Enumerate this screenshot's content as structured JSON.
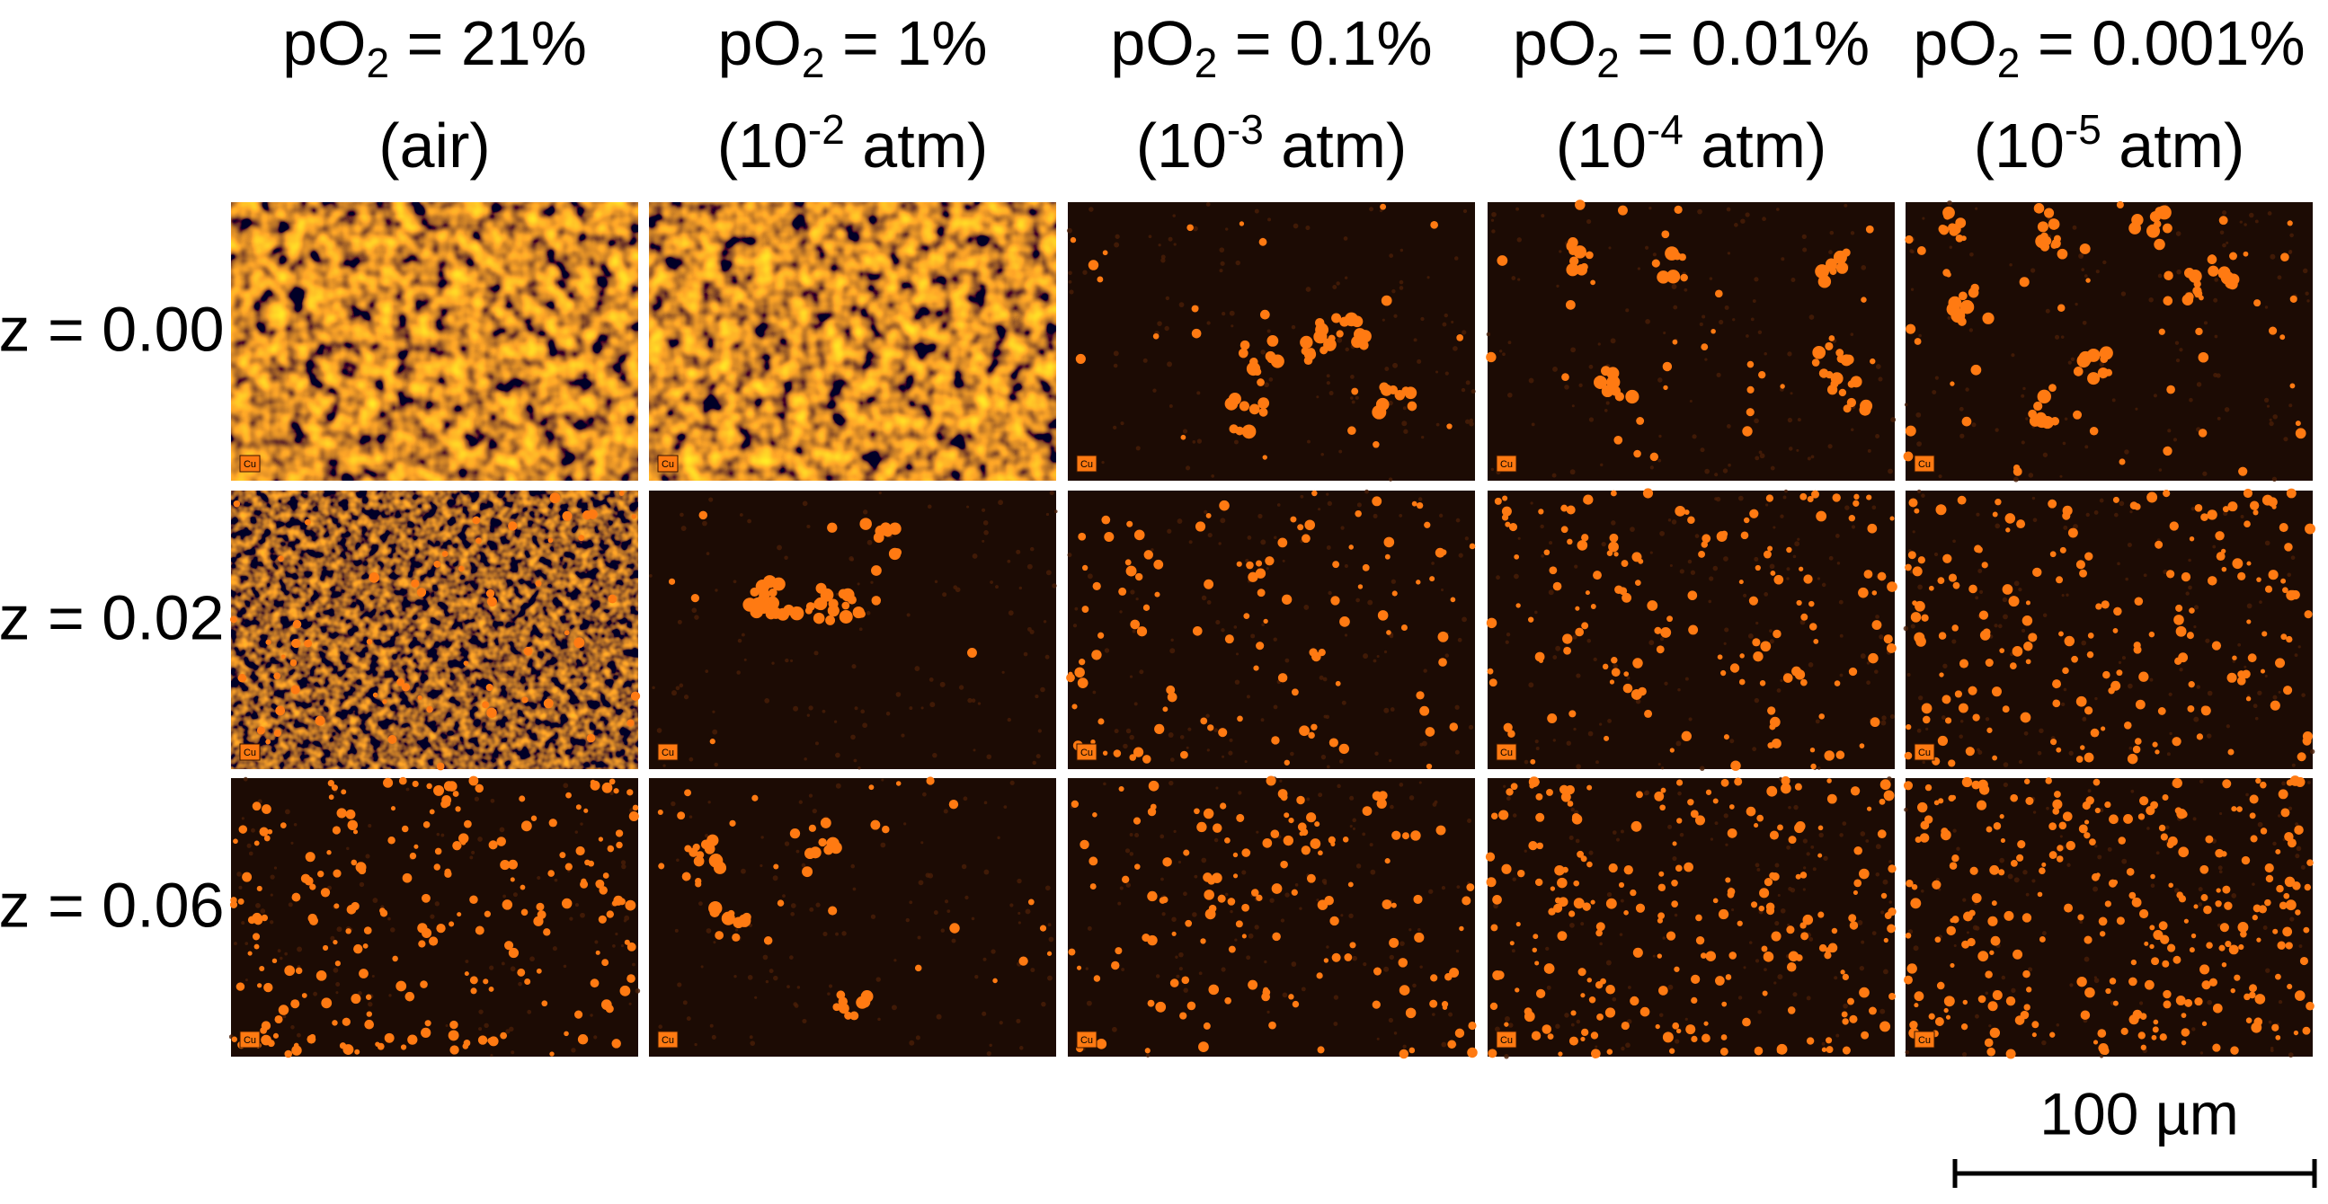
{
  "columns": [
    {
      "title": {
        "main": "pO",
        "sub": "2",
        "rest": " = 21%"
      },
      "subtitle": {
        "main": "(air)"
      }
    },
    {
      "title": {
        "main": "pO",
        "sub": "2",
        "rest": " = 1%"
      },
      "subtitle": {
        "main": "(10",
        "sup": "-2",
        "rest": " atm)"
      }
    },
    {
      "title": {
        "main": "pO",
        "sub": "2",
        "rest": " = 0.1%"
      },
      "subtitle": {
        "main": "(10",
        "sup": "-3",
        "rest": " atm)"
      }
    },
    {
      "title": {
        "main": "pO",
        "sub": "2",
        "rest": " = 0.01%"
      },
      "subtitle": {
        "main": "(10",
        "sup": "-4",
        "rest": " atm)"
      }
    },
    {
      "title": {
        "main": "pO",
        "sub": "2",
        "rest": " = 0.001%"
      },
      "subtitle": {
        "main": "(10",
        "sup": "-5",
        "rest": " atm)"
      }
    }
  ],
  "rows": [
    "z = 0.00",
    "z = 0.02",
    "z = 0.06"
  ],
  "element_label": "Cu",
  "scale_bar": "100 µm"
}
